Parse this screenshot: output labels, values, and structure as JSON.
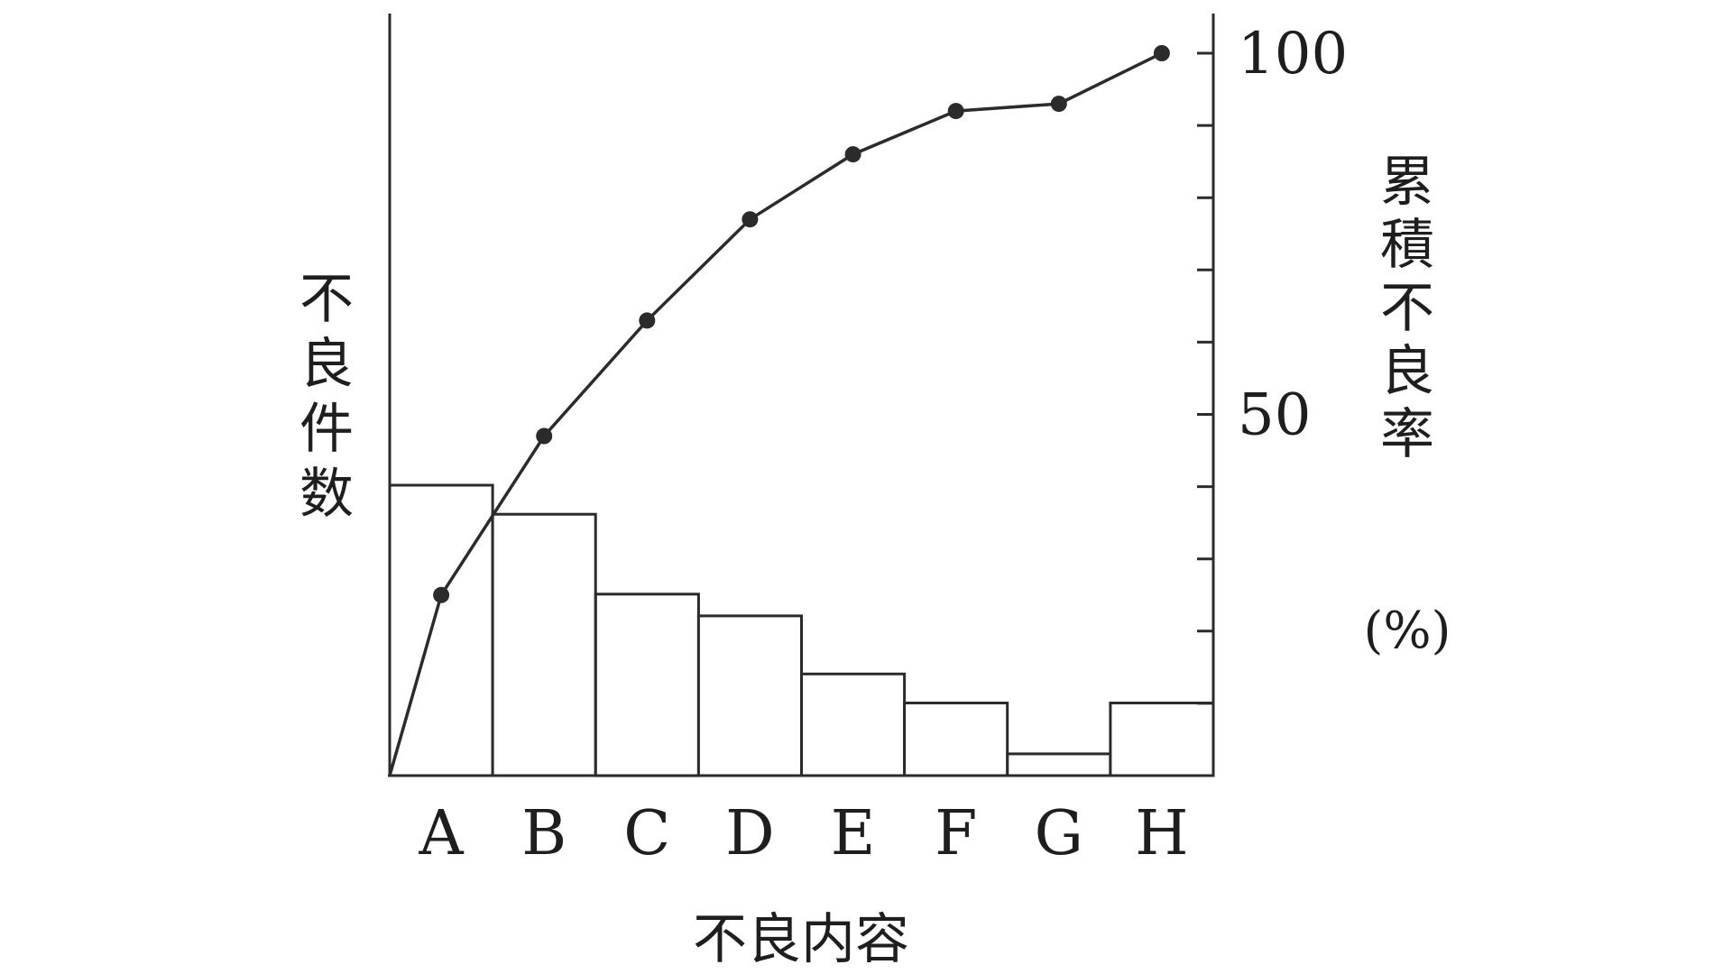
{
  "chart_data": {
    "type": "bar",
    "categories": [
      "A",
      "B",
      "C",
      "D",
      "E",
      "F",
      "G",
      "H"
    ],
    "bar_values": [
      40,
      36,
      25,
      22,
      14,
      10,
      3,
      10
    ],
    "cumulative_percent": [
      25,
      47,
      63,
      77,
      86,
      92,
      93,
      100
    ],
    "xlabel": "不良内容",
    "ylabel_left": "不良件数",
    "ylabel_right": "累積不良率",
    "ylabel_right_unit": "(%)",
    "right_axis": {
      "ylim": [
        0,
        100
      ],
      "tick_labels": [
        "50",
        "100"
      ],
      "minor_tick_step": 10
    },
    "grid": false,
    "legend": "none"
  }
}
